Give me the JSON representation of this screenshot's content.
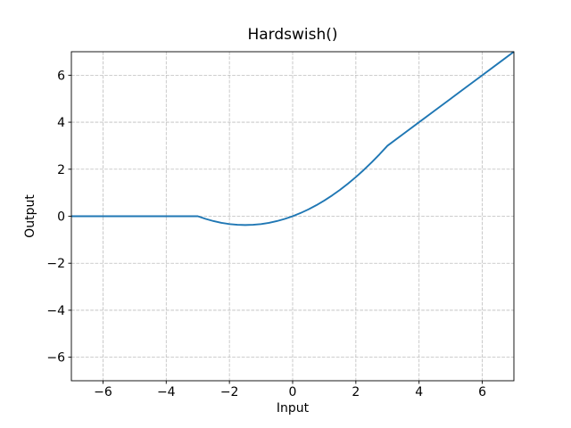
{
  "chart_data": {
    "type": "line",
    "title": "Hardswish()",
    "xlabel": "Input",
    "ylabel": "Output",
    "xlim": [
      -7,
      7
    ],
    "ylim": [
      -7,
      7
    ],
    "xticks": [
      -6,
      -4,
      -2,
      0,
      2,
      4,
      6
    ],
    "yticks": [
      -6,
      -4,
      -2,
      0,
      2,
      4,
      6
    ],
    "grid": true,
    "grid_style": "dashed",
    "grid_color": "#bdbdbd",
    "line_color": "#1f77b4",
    "line_width": 1.9,
    "legend": "none",
    "series": [
      {
        "name": "Hardswish",
        "x": [
          -7,
          -6,
          -5,
          -4,
          -3.5,
          -3,
          -2.75,
          -2.5,
          -2.25,
          -2,
          -1.75,
          -1.5,
          -1.25,
          -1,
          -0.75,
          -0.5,
          -0.25,
          0,
          0.25,
          0.5,
          0.75,
          1,
          1.25,
          1.5,
          1.75,
          2,
          2.25,
          2.5,
          2.75,
          3,
          3.5,
          4,
          4.5,
          5,
          5.5,
          6,
          6.5,
          7
        ],
        "y": [
          0,
          0,
          0,
          0,
          0,
          0,
          -0.1146,
          -0.2083,
          -0.2813,
          -0.3333,
          -0.3646,
          -0.375,
          -0.3646,
          -0.3333,
          -0.2813,
          -0.2083,
          -0.1146,
          0,
          0.1354,
          0.2917,
          0.4688,
          0.6667,
          0.8854,
          1.125,
          1.3854,
          1.6667,
          1.9688,
          2.2917,
          2.6354,
          3,
          3.5,
          4,
          4.5,
          5,
          5.5,
          6,
          6.5,
          7
        ]
      }
    ]
  }
}
